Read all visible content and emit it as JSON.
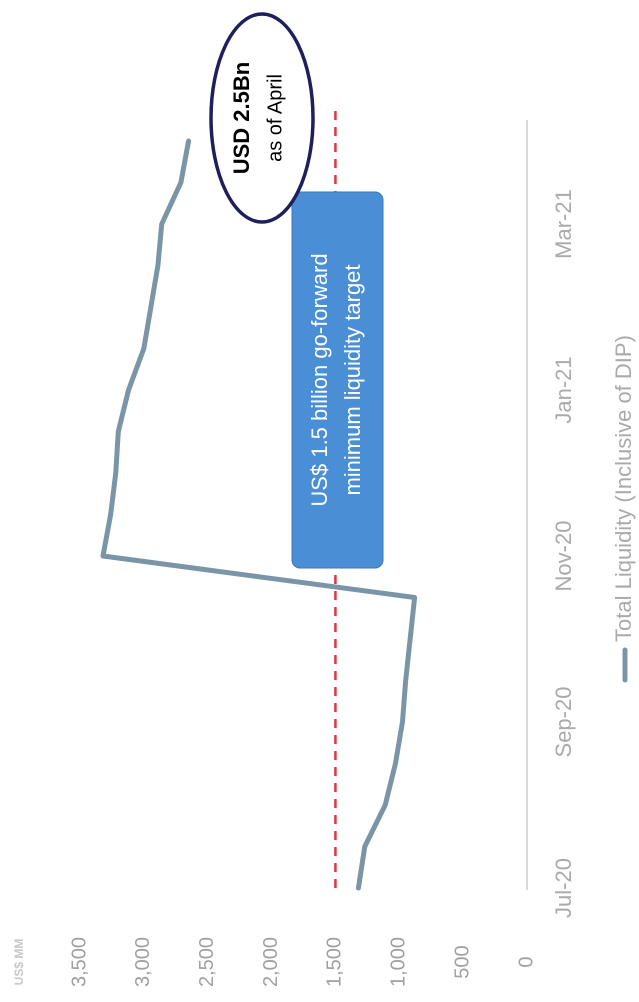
{
  "chart_data": {
    "type": "line",
    "y_axis_title": "US$ MM",
    "categories": [
      "Jul-20",
      null,
      null,
      null,
      "Sep-20",
      null,
      null,
      null,
      "Nov-20",
      null,
      null,
      null,
      "Jan-21",
      null,
      null,
      null,
      "Mar-21",
      null,
      null
    ],
    "series": [
      {
        "name": "Total Liquidity (Inclusive of DIP)",
        "color": "#7b95a8",
        "values": [
          1320,
          1270,
          1110,
          1030,
          975,
          950,
          915,
          880,
          3320,
          3260,
          3220,
          3200,
          3120,
          3000,
          2945,
          2890,
          2860,
          2710,
          2650
        ]
      }
    ],
    "ylim": [
      0,
      3500
    ],
    "yticks": [
      0,
      500,
      {
        "value": 1000,
        "label": "1,000"
      },
      {
        "value": 1500,
        "label": "1,500"
      },
      {
        "value": 2000,
        "label": "2,000"
      },
      {
        "value": 2500,
        "label": "2,500"
      },
      {
        "value": 3000,
        "label": "3,000"
      },
      {
        "value": 3500,
        "label": "3,500"
      }
    ],
    "reference_line": {
      "value": 1500,
      "color": "#e0343a"
    },
    "annotations": [
      {
        "text": [
          "US$ 1.5 billion go-forward",
          "minimum liquidity target"
        ]
      },
      {
        "text": [
          "USD 2.5Bn",
          "as of April"
        ]
      }
    ],
    "legend": "bottom"
  }
}
